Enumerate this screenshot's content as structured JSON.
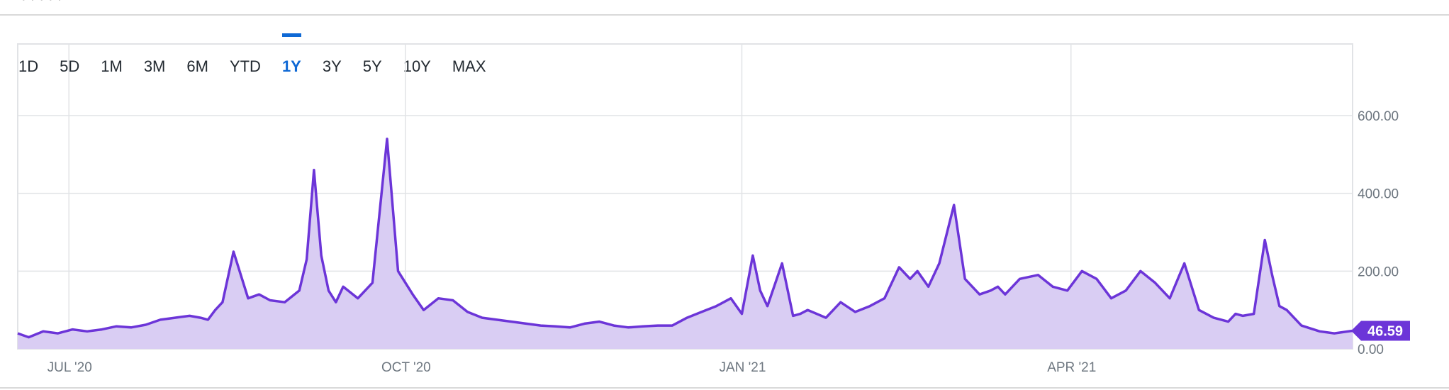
{
  "range_selector": {
    "buttons": [
      "1D",
      "5D",
      "1M",
      "3M",
      "6M",
      "YTD",
      "1Y",
      "3Y",
      "5Y",
      "10Y",
      "MAX"
    ],
    "active": "1Y"
  },
  "colors": {
    "line": "#6c35d8",
    "fill": "#d9cdf3",
    "grid": "#e1e3e6",
    "badge": "#6c35d8",
    "active_tab": "#0f69d5"
  },
  "chart_data": {
    "type": "area",
    "x_tick_labels": [
      "JUL '20",
      "OCT '20",
      "JAN '21",
      "APR '21"
    ],
    "y_tick_labels": [
      "600.00",
      "400.00",
      "200.00",
      "0.00"
    ],
    "y_ticks": [
      600,
      400,
      200,
      0
    ],
    "ylim": [
      0,
      600
    ],
    "xlim": [
      "2020-06-17",
      "2021-06-17"
    ],
    "x_ticks": [
      "2020-07-01",
      "2020-10-01",
      "2021-01-01",
      "2021-04-01"
    ],
    "grid": true,
    "last_value_label": "46.59",
    "last_value": 46.59,
    "series": [
      {
        "x": [
          "2020-06-17",
          "2020-06-20",
          "2020-06-24",
          "2020-06-28",
          "2020-07-02",
          "2020-07-06",
          "2020-07-10",
          "2020-07-14",
          "2020-07-18",
          "2020-07-22",
          "2020-07-26",
          "2020-07-30",
          "2020-08-03",
          "2020-08-06",
          "2020-08-08",
          "2020-08-10",
          "2020-08-12",
          "2020-08-15",
          "2020-08-19",
          "2020-08-22",
          "2020-08-25",
          "2020-08-29",
          "2020-09-02",
          "2020-09-04",
          "2020-09-06",
          "2020-09-08",
          "2020-09-10",
          "2020-09-12",
          "2020-09-14",
          "2020-09-18",
          "2020-09-22",
          "2020-09-26",
          "2020-09-29",
          "2020-10-03",
          "2020-10-06",
          "2020-10-10",
          "2020-10-14",
          "2020-10-18",
          "2020-10-22",
          "2020-10-26",
          "2020-10-30",
          "2020-11-03",
          "2020-11-07",
          "2020-11-11",
          "2020-11-15",
          "2020-11-19",
          "2020-11-23",
          "2020-11-27",
          "2020-12-01",
          "2020-12-05",
          "2020-12-09",
          "2020-12-13",
          "2020-12-17",
          "2020-12-21",
          "2020-12-25",
          "2020-12-29",
          "2021-01-01",
          "2021-01-04",
          "2021-01-06",
          "2021-01-08",
          "2021-01-12",
          "2021-01-15",
          "2021-01-17",
          "2021-01-19",
          "2021-01-24",
          "2021-01-28",
          "2021-02-01",
          "2021-02-05",
          "2021-02-09",
          "2021-02-13",
          "2021-02-16",
          "2021-02-18",
          "2021-02-21",
          "2021-02-24",
          "2021-02-28",
          "2021-03-03",
          "2021-03-07",
          "2021-03-10",
          "2021-03-12",
          "2021-03-14",
          "2021-03-18",
          "2021-03-23",
          "2021-03-27",
          "2021-03-31",
          "2021-04-04",
          "2021-04-08",
          "2021-04-12",
          "2021-04-16",
          "2021-04-20",
          "2021-04-24",
          "2021-04-28",
          "2021-05-02",
          "2021-05-06",
          "2021-05-10",
          "2021-05-14",
          "2021-05-16",
          "2021-05-18",
          "2021-05-21",
          "2021-05-24",
          "2021-05-26",
          "2021-05-28",
          "2021-05-30",
          "2021-06-03",
          "2021-06-08",
          "2021-06-12",
          "2021-06-17"
        ],
        "values": [
          40,
          30,
          45,
          40,
          50,
          45,
          50,
          58,
          55,
          62,
          75,
          80,
          85,
          80,
          75,
          100,
          120,
          250,
          130,
          140,
          125,
          120,
          150,
          230,
          460,
          240,
          150,
          120,
          160,
          130,
          170,
          540,
          200,
          140,
          100,
          130,
          125,
          95,
          80,
          75,
          70,
          65,
          60,
          58,
          55,
          65,
          70,
          60,
          55,
          58,
          60,
          60,
          80,
          95,
          110,
          130,
          90,
          240,
          150,
          110,
          220,
          85,
          90,
          100,
          80,
          120,
          95,
          110,
          130,
          210,
          180,
          200,
          160,
          220,
          370,
          180,
          140,
          150,
          160,
          140,
          180,
          190,
          160,
          150,
          200,
          180,
          130,
          150,
          200,
          170,
          130,
          220,
          100,
          80,
          70,
          90,
          85,
          90,
          280,
          190,
          110,
          100,
          60,
          45,
          40,
          46.59
        ]
      }
    ]
  }
}
